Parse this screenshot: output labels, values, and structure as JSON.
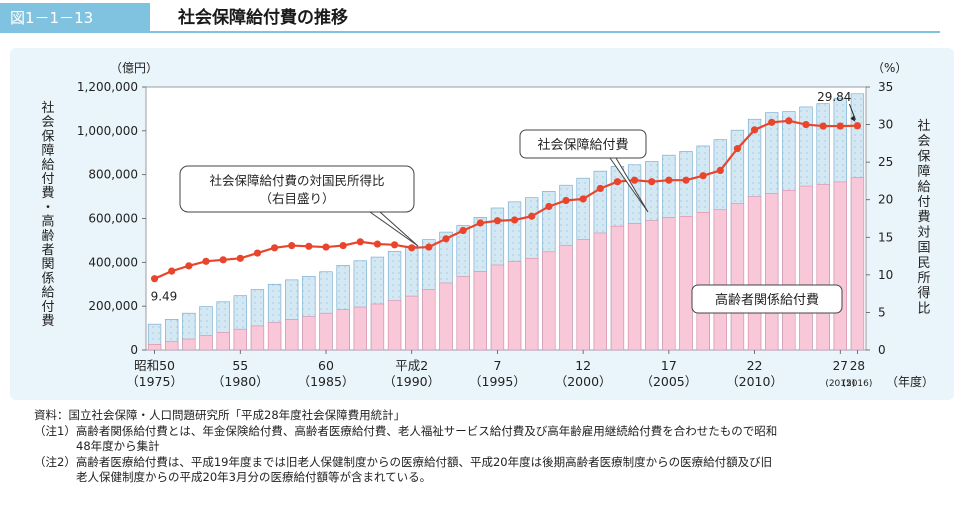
{
  "header": {
    "figure_label": "図1－1－13",
    "title": "社会保障給付費の推移"
  },
  "colors": {
    "header_accent": "#7fc3e0",
    "panel_bg": "#eaf5fb",
    "bar_total_fill": "#d4e8f4",
    "bar_elderly_fill": "#f9c8d8",
    "line_color": "#e8452c"
  },
  "chart_data": {
    "type": "bar+line",
    "left_axis": {
      "unit": "（億円）",
      "label": "社会保障給付費・高齢者関係給付費",
      "ylim": [
        0,
        1200000
      ],
      "ticks": [
        "0",
        "200,000",
        "400,000",
        "600,000",
        "800,000",
        "1,000,000",
        "1,200,000"
      ]
    },
    "right_axis": {
      "unit": "（%）",
      "label": "社会保障給付費対国民所得比",
      "ylim": [
        0,
        35
      ],
      "ticks": [
        "0",
        "5",
        "10",
        "15",
        "20",
        "25",
        "30",
        "35"
      ]
    },
    "x_axis_suffix": "（年度）",
    "x_ticks": [
      {
        "index": 0,
        "top": "昭和50",
        "bottom": "（1975）"
      },
      {
        "index": 5,
        "top": "55",
        "bottom": "（1980）"
      },
      {
        "index": 10,
        "top": "60",
        "bottom": "（1985）"
      },
      {
        "index": 15,
        "top": "平成2",
        "bottom": "（1990）"
      },
      {
        "index": 20,
        "top": "7",
        "bottom": "（1995）"
      },
      {
        "index": 25,
        "top": "12",
        "bottom": "（2000）"
      },
      {
        "index": 30,
        "top": "17",
        "bottom": "（2005）"
      },
      {
        "index": 35,
        "top": "22",
        "bottom": "（2010）"
      },
      {
        "index": 40,
        "top": "27",
        "bottom": "(2015)"
      },
      {
        "index": 41,
        "top": "28",
        "bottom": "(2016)"
      }
    ],
    "years": [
      1975,
      1976,
      1977,
      1978,
      1979,
      1980,
      1981,
      1982,
      1983,
      1984,
      1985,
      1986,
      1987,
      1988,
      1989,
      1990,
      1991,
      1992,
      1993,
      1994,
      1995,
      1996,
      1997,
      1998,
      1999,
      2000,
      2001,
      2002,
      2003,
      2004,
      2005,
      2006,
      2007,
      2008,
      2009,
      2010,
      2011,
      2012,
      2013,
      2014,
      2015,
      2016
    ],
    "series": [
      {
        "name": "社会保障給付費",
        "kind": "bar",
        "values": [
          118000,
          140000,
          168000,
          198000,
          220000,
          248000,
          276000,
          300000,
          320000,
          336000,
          357000,
          386000,
          407000,
          424000,
          450000,
          474000,
          504000,
          538000,
          568000,
          605000,
          648000,
          676000,
          695000,
          724000,
          752000,
          784000,
          816000,
          838000,
          845000,
          860000,
          889000,
          906000,
          931000,
          960000,
          1003000,
          1053000,
          1083000,
          1088000,
          1109000,
          1124000,
          1149000,
          1169000
        ]
      },
      {
        "name": "高齢者関係給付費",
        "kind": "bar",
        "values": [
          26000,
          38000,
          50000,
          66000,
          80000,
          95000,
          110000,
          125000,
          140000,
          152000,
          168000,
          184000,
          196000,
          210000,
          225000,
          246000,
          276000,
          306000,
          335000,
          359000,
          388000,
          405000,
          418000,
          448000,
          478000,
          504000,
          534000,
          565000,
          578000,
          590000,
          605000,
          610000,
          628000,
          640000,
          668000,
          700000,
          714000,
          728000,
          748000,
          755000,
          767000,
          786000
        ]
      },
      {
        "name": "社会保障給付費の対国民所得比",
        "kind": "line",
        "axis": "right",
        "values": [
          9.49,
          10.5,
          11.2,
          11.8,
          12.0,
          12.2,
          12.9,
          13.6,
          13.9,
          13.8,
          13.7,
          13.9,
          14.4,
          14.1,
          14.0,
          13.6,
          13.7,
          14.8,
          15.9,
          16.9,
          17.2,
          17.3,
          17.8,
          19.1,
          19.9,
          20.1,
          21.5,
          22.4,
          22.6,
          22.4,
          22.6,
          22.6,
          23.2,
          23.9,
          26.8,
          29.3,
          30.3,
          30.5,
          30.0,
          29.8,
          29.8,
          29.84
        ]
      }
    ],
    "annotations": {
      "first_value": "9.49",
      "last_value": "29.84",
      "callout_total": "社会保障給付費",
      "callout_ratio_line1": "社会保障給付費の対国民所得比",
      "callout_ratio_line2": "（右目盛り）",
      "callout_elderly": "高齢者関係給付費"
    }
  },
  "notes": {
    "source": "資料：国立社会保障・人口問題研究所「平成28年度社会保障費用統計」",
    "note1_line1": "（注1）高齢者関係給付費とは、年金保険給付費、高齢者医療給付費、老人福祉サービス給付費及び高年齢雇用継続給付費を合わせたもので昭和",
    "note1_line2": "48年度から集計",
    "note2_line1": "（注2）高齢者医療給付費は、平成19年度までは旧老人保健制度からの医療給付額、平成20年度は後期高齢者医療制度からの医療給付額及び旧",
    "note2_line2": "老人保健制度からの平成20年3月分の医療給付額等が含まれている。"
  }
}
